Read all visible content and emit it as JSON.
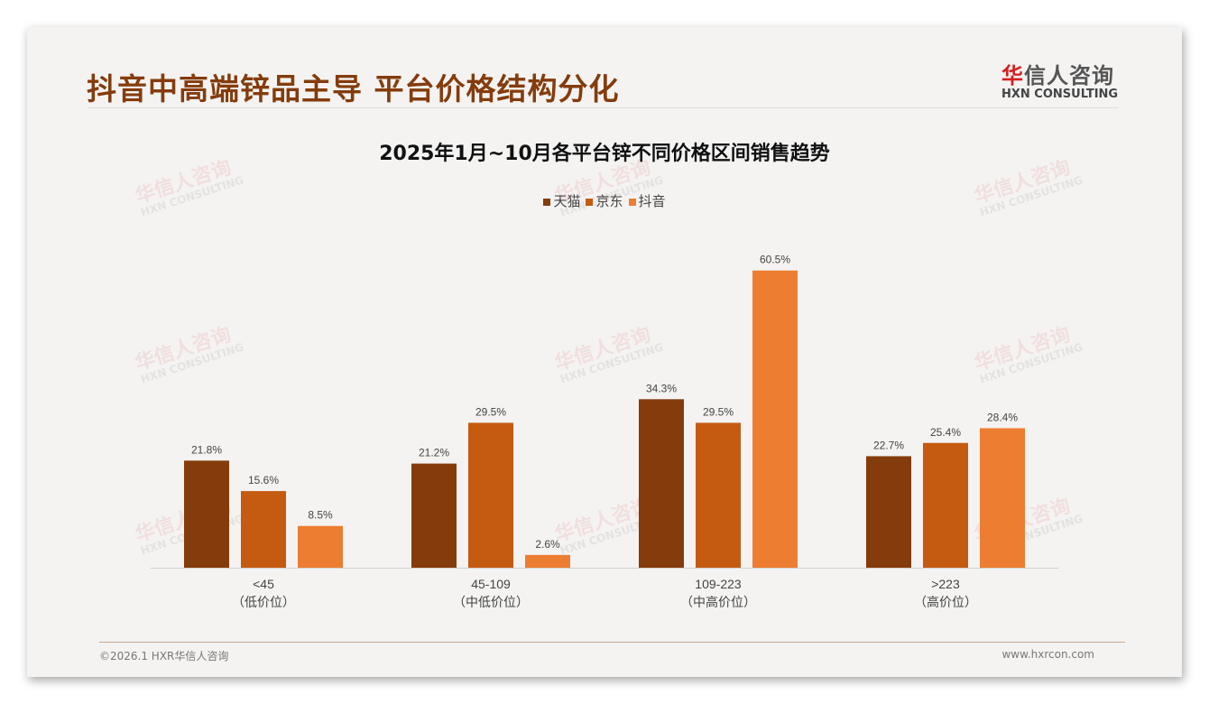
{
  "header": {
    "title": "抖音中高端锌品主导 平台价格结构分化",
    "logo_cn": "华信人咨询",
    "logo_en": "HXN CONSULTING"
  },
  "footer": {
    "copyright": "©2026.1 HXR华信人咨询",
    "url": "www.hxrcon.com"
  },
  "watermark": {
    "cn": "华信人咨询",
    "en": "HXN CONSULTING"
  },
  "chart_data": {
    "type": "bar",
    "title": "2025年1月~10月各平台锌不同价格区间销售趋势",
    "categories": [
      "<45",
      "45-109",
      "109-223",
      ">223"
    ],
    "category_sublabels": [
      "（低价位）",
      "（中低价位）",
      "（中高价位）",
      "（高价位）"
    ],
    "series": [
      {
        "name": "天猫",
        "color": "#843c0c",
        "values": [
          21.8,
          21.2,
          34.3,
          22.7
        ]
      },
      {
        "name": "京东",
        "color": "#c55a11",
        "values": [
          15.6,
          29.5,
          29.5,
          25.4
        ]
      },
      {
        "name": "抖音",
        "color": "#ed7d31",
        "values": [
          8.5,
          2.6,
          60.5,
          28.4
        ]
      }
    ],
    "value_suffix": "%",
    "ylim": [
      0,
      70
    ],
    "grid": false,
    "legend": "top"
  }
}
